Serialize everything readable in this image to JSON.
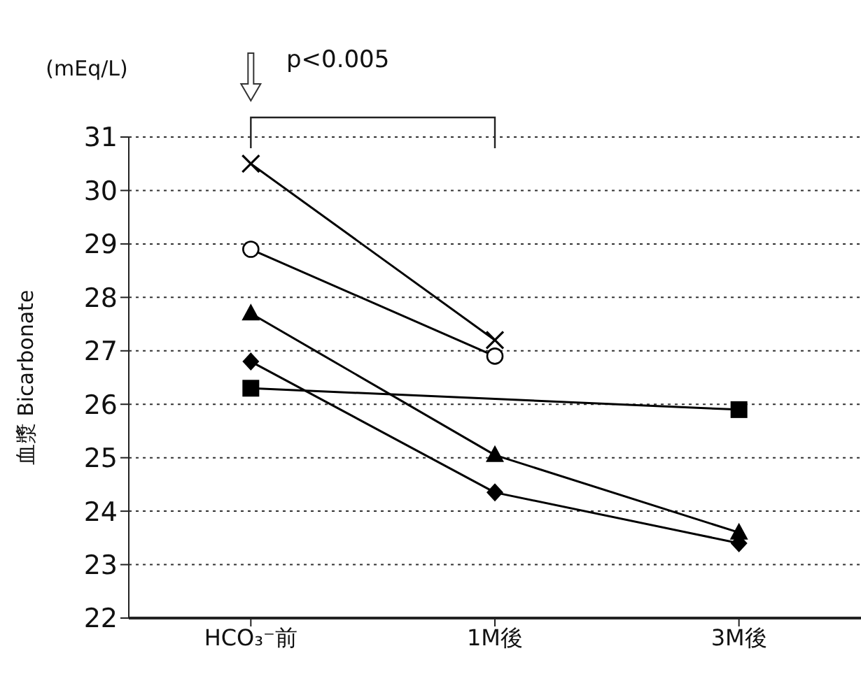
{
  "chart_data": {
    "type": "line",
    "ylabel": "血漿 Bicarbonate",
    "annotations": [
      "(mEq/L)",
      "p<0.005"
    ],
    "categories": [
      "HCO₃⁻前",
      "1M後",
      "3M後"
    ],
    "ylim": [
      22,
      31
    ],
    "yticks": [
      22,
      23,
      24,
      25,
      26,
      27,
      28,
      29,
      30,
      31
    ],
    "grid": "y",
    "legend": false,
    "series": [
      {
        "color": "#000000",
        "marker": "cross",
        "values": [
          30.5,
          27.2,
          null
        ]
      },
      {
        "color": "#000000",
        "marker": "circle",
        "values": [
          28.9,
          26.9,
          null
        ]
      },
      {
        "color": "#000000",
        "marker": "triangle",
        "values": [
          27.7,
          25.05,
          23.6
        ]
      },
      {
        "color": "#000000",
        "marker": "diamond",
        "values": [
          26.8,
          24.35,
          23.4
        ]
      },
      {
        "color": "#000000",
        "marker": "square",
        "values": [
          26.3,
          null,
          25.9
        ]
      }
    ]
  }
}
